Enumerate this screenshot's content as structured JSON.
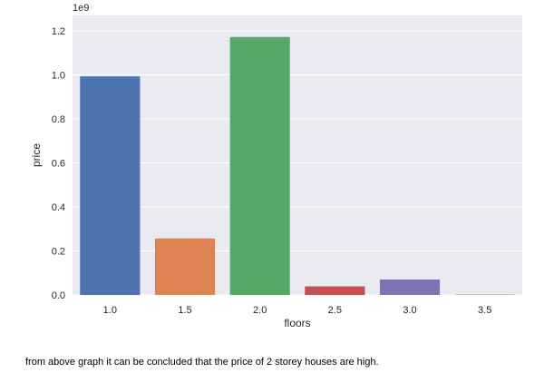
{
  "chart_data": {
    "type": "bar",
    "title": "",
    "xlabel": "floors",
    "ylabel": "price",
    "offset_label": "1e9",
    "categories": [
      "1.0",
      "1.5",
      "2.0",
      "2.5",
      "3.0",
      "3.5"
    ],
    "values": [
      993000000,
      257000000,
      1172000000,
      39000000,
      70000000,
      1500000
    ],
    "ylim": [
      0,
      1270000000.0
    ],
    "yticks": [
      0,
      0.2,
      0.4,
      0.6,
      0.8,
      1.0,
      1.2
    ],
    "ytick_labels": [
      "0.0",
      "0.2",
      "0.4",
      "0.6",
      "0.8",
      "1.0",
      "1.2"
    ],
    "grid": true,
    "background": "#eaeaf2",
    "colors": [
      "#4c72b0",
      "#dd8452",
      "#55a868",
      "#c44e52",
      "#8172b3",
      "#937860"
    ]
  },
  "caption": "from above graph it can be concluded that the price of 2 storey houses are high."
}
